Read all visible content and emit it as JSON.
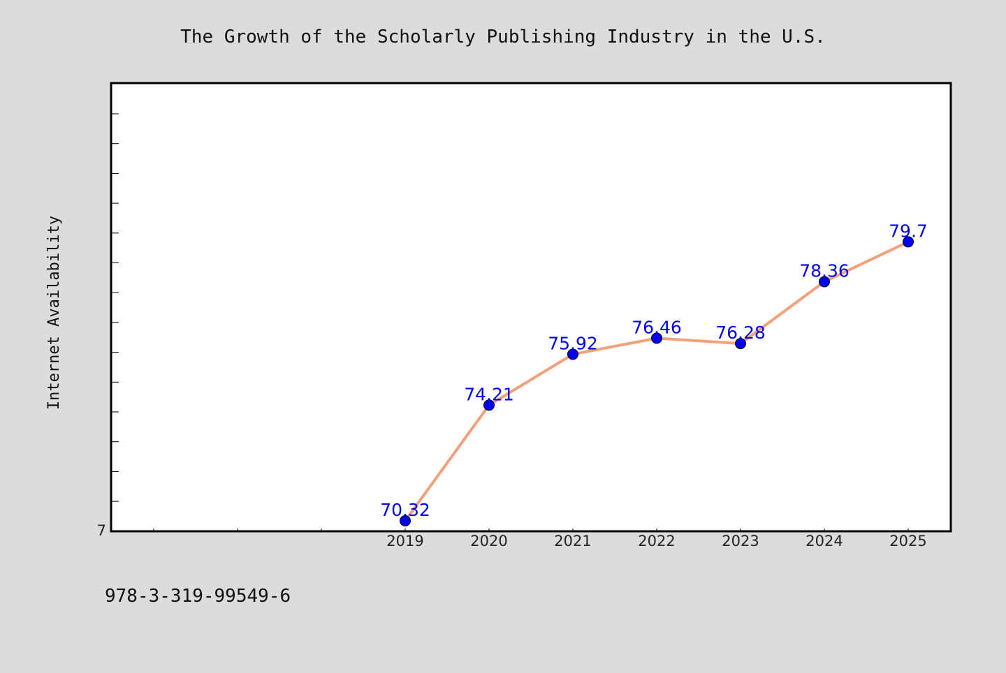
{
  "chart_data": {
    "type": "line",
    "title": "The Growth of the Scholarly Publishing Industry in the U.S.",
    "xlabel": "",
    "ylabel": "Internet Availability",
    "categories": [
      "2019",
      "2020",
      "2021",
      "2022",
      "2023",
      "2024",
      "2025"
    ],
    "series": [
      {
        "values": [
          70.32,
          74.21,
          75.92,
          76.46,
          76.28,
          78.36,
          79.7
        ],
        "value_labels": [
          "70.32",
          "74.21",
          "75.92",
          "76.46",
          "76.28",
          "78.36",
          "79.7"
        ],
        "line_color": "#f4a07a",
        "marker_color": "#0000ee"
      }
    ],
    "y_tick_labels": [
      "7"
    ],
    "grid": false,
    "legend": "none"
  },
  "footer": {
    "text": "978-3-319-99549-6"
  }
}
